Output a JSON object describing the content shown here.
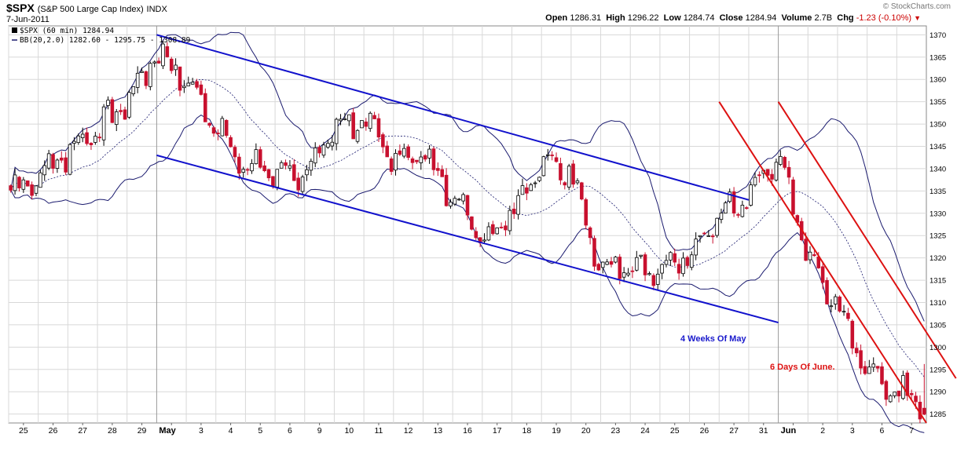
{
  "header": {
    "symbol": "$SPX",
    "name": "(S&P 500 Large Cap Index)",
    "exchange": "INDX",
    "date": "7-Jun-2011",
    "credit": "© StockCharts.com",
    "quote": {
      "open_label": "Open",
      "open": "1286.31",
      "high_label": "High",
      "high": "1296.22",
      "low_label": "Low",
      "low": "1284.74",
      "close_label": "Close",
      "close": "1284.94",
      "volume_label": "Volume",
      "volume": "2.7B",
      "chg_label": "Chg",
      "chg": "-1.23 (-0.10%)",
      "down_marker": "▼"
    }
  },
  "legend": {
    "line1": "$SPX (60 min) 1284.94",
    "line2": "BB(20,2.0) 1282.60 - 1295.75 - 1308.89"
  },
  "annotations": {
    "may": "4 Weeks Of May",
    "june": "6 Days Of June."
  },
  "colors": {
    "down_candle": "#c8102e",
    "up_candle": "#ffffff",
    "band": "#1a1a6e",
    "channel_blue": "#1111cc",
    "channel_red": "#dd1111",
    "grid": "#d8d8d8"
  },
  "chart_data": {
    "type": "candlestick",
    "interval": "60 min",
    "y_axis": {
      "position": "right",
      "ylim": [
        1283,
        1372
      ],
      "ticks": [
        1285,
        1290,
        1295,
        1300,
        1305,
        1310,
        1315,
        1320,
        1325,
        1330,
        1335,
        1340,
        1345,
        1350,
        1355,
        1360,
        1365,
        1370
      ]
    },
    "x_axis": {
      "sessions": [
        "25",
        "26",
        "27",
        "28",
        "29",
        "May",
        "3",
        "4",
        "5",
        "6",
        "9",
        "10",
        "11",
        "12",
        "13",
        "16",
        "17",
        "18",
        "19",
        "20",
        "23",
        "24",
        "25",
        "26",
        "27",
        "31",
        "Jun",
        "2",
        "3",
        "6",
        "7"
      ],
      "month_starts": [
        "May",
        "Jun"
      ],
      "bars_per_session": 7
    },
    "session_anchors": [
      {
        "s": 0,
        "v": 1335
      },
      {
        "s": 1,
        "v": 1338
      },
      {
        "s": 2,
        "v": 1344
      },
      {
        "s": 3,
        "v": 1349
      },
      {
        "s": 4,
        "v": 1355
      },
      {
        "s": 5,
        "v": 1366
      },
      {
        "s": 6,
        "v": 1360
      },
      {
        "s": 7,
        "v": 1349
      },
      {
        "s": 8,
        "v": 1341
      },
      {
        "s": 9,
        "v": 1339
      },
      {
        "s": 10,
        "v": 1339
      },
      {
        "s": 11,
        "v": 1348
      },
      {
        "s": 12,
        "v": 1352
      },
      {
        "s": 13,
        "v": 1342
      },
      {
        "s": 14,
        "v": 1343
      },
      {
        "s": 15,
        "v": 1334
      },
      {
        "s": 16,
        "v": 1324
      },
      {
        "s": 17,
        "v": 1330
      },
      {
        "s": 18,
        "v": 1342
      },
      {
        "s": 19,
        "v": 1340
      },
      {
        "s": 20,
        "v": 1317
      },
      {
        "s": 21,
        "v": 1318
      },
      {
        "s": 22,
        "v": 1318
      },
      {
        "s": 23,
        "v": 1320
      },
      {
        "s": 24,
        "v": 1329
      },
      {
        "s": 25,
        "v": 1333
      },
      {
        "s": 26,
        "v": 1343
      },
      {
        "s": 27,
        "v": 1320
      },
      {
        "s": 28,
        "v": 1309
      },
      {
        "s": 29,
        "v": 1295
      },
      {
        "s": 30,
        "v": 1290
      },
      {
        "s": 31,
        "v": 1287
      }
    ],
    "bollinger": {
      "period": 20,
      "stddev": 2.0,
      "lower": 1282.6,
      "middle": 1295.75,
      "upper": 1308.89
    },
    "last": {
      "open": 1286.31,
      "high": 1296.22,
      "low": 1284.74,
      "close": 1284.94
    },
    "channels": [
      {
        "name": "4 Weeks Of May",
        "color": "blue",
        "upper": {
          "x1_session": 5.0,
          "y1": 1370,
          "x2_session": 25.0,
          "y2": 1333
        },
        "lower": {
          "x1_session": 5.0,
          "y1": 1343,
          "x2_session": 26.0,
          "y2": 1305.5
        }
      },
      {
        "name": "6 Days Of June.",
        "color": "red",
        "upper": {
          "x1_session": 26.0,
          "y1": 1355,
          "x2_session": 32.0,
          "y2": 1293
        },
        "lower": {
          "x1_session": 24.0,
          "y1": 1355,
          "x2_session": 31.0,
          "y2": 1283
        }
      }
    ],
    "grid": true
  }
}
